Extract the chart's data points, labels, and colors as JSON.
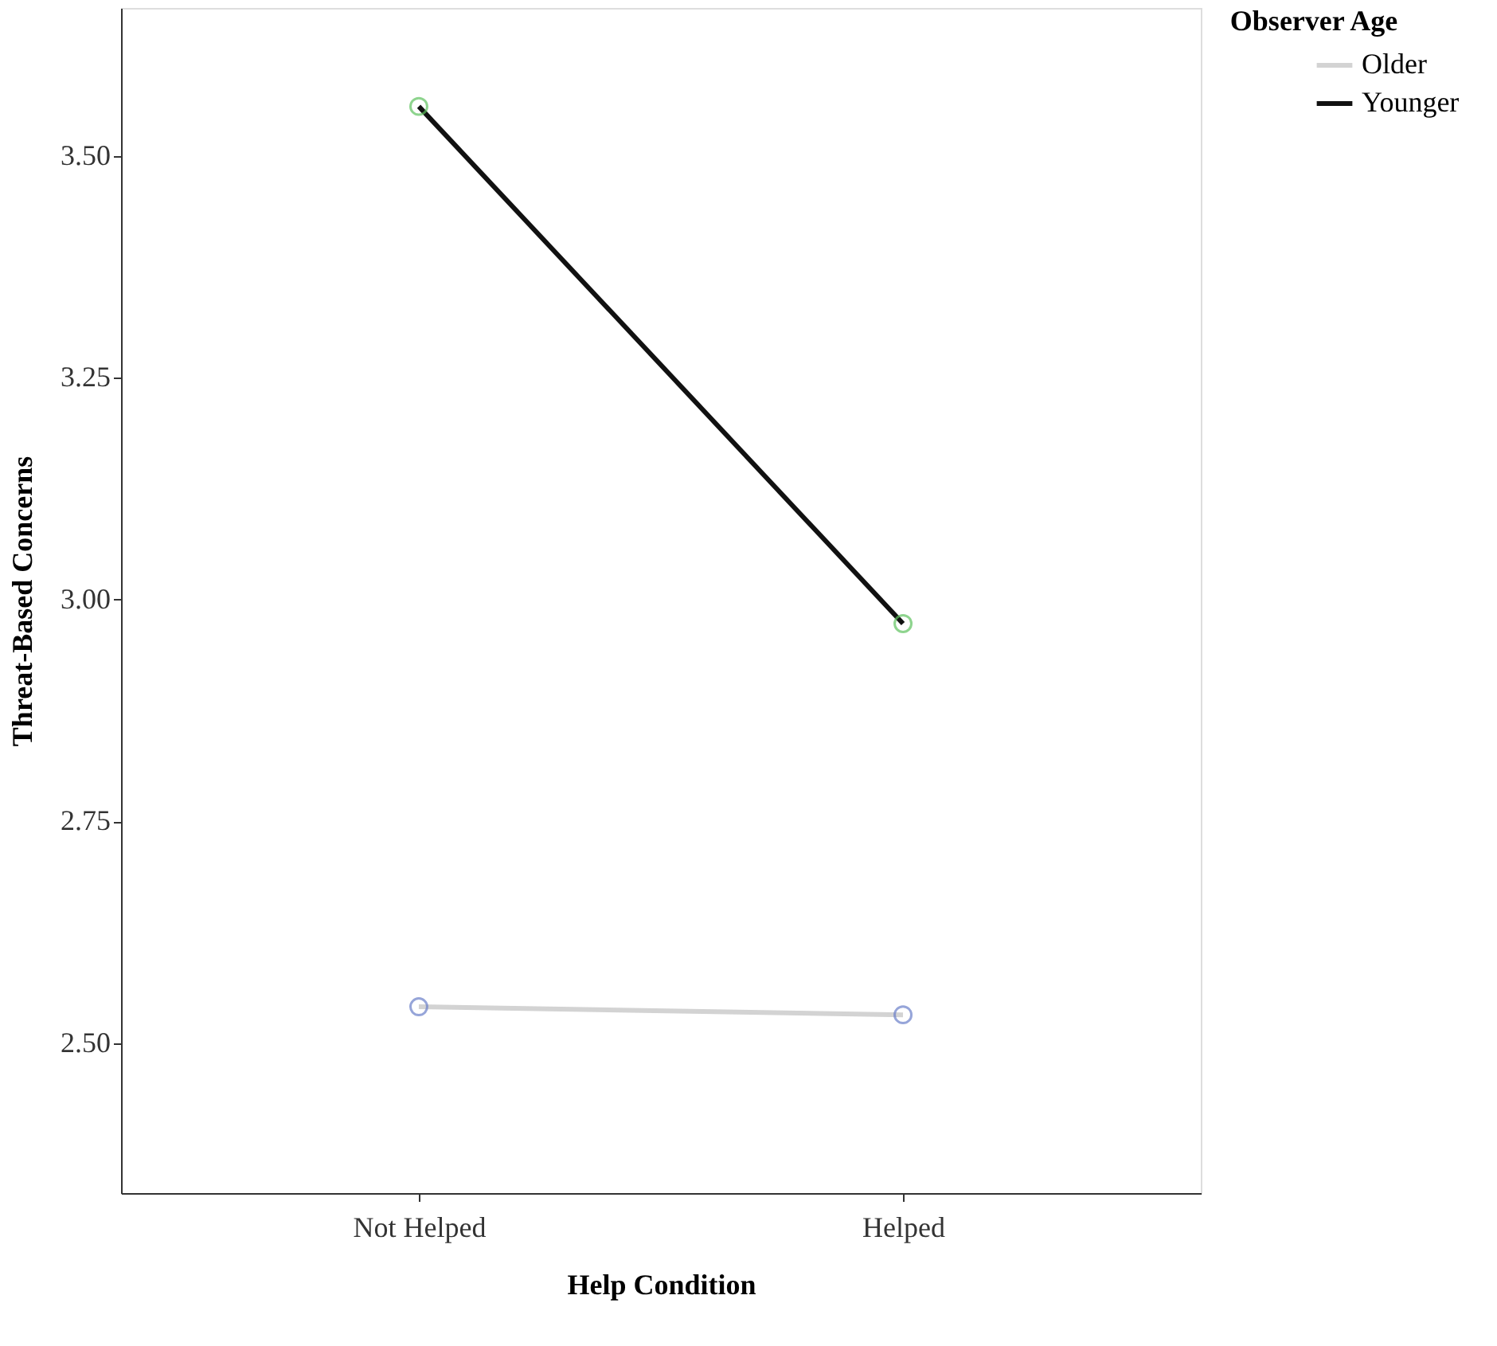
{
  "chart_data": {
    "type": "line",
    "xlabel": "Help Condition",
    "ylabel": "Threat-Based Concerns",
    "legend_title": "Observer Age",
    "categories": [
      "Not Helped",
      "Helped"
    ],
    "series": [
      {
        "name": "Older",
        "color": "#d3d3d3",
        "colors": [
          "#6a7fc9",
          "#6a7fc9"
        ],
        "values": [
          2.541,
          2.532
        ]
      },
      {
        "name": "Younger",
        "color": "#111111",
        "colors": [
          "#5fc25f",
          "#5fc25f"
        ],
        "values": [
          3.556,
          2.973
        ]
      }
    ],
    "ylim": [
      2.331,
      3.667
    ],
    "yticks": [
      {
        "value": 2.5,
        "label": "2.50"
      },
      {
        "value": 2.75,
        "label": "2.75"
      },
      {
        "value": 3.0,
        "label": "3.00"
      },
      {
        "value": 3.25,
        "label": "3.25"
      },
      {
        "value": 3.5,
        "label": "3.50"
      }
    ],
    "grid": false,
    "legend": "top right",
    "marker": "circle",
    "line_style": "solid"
  }
}
